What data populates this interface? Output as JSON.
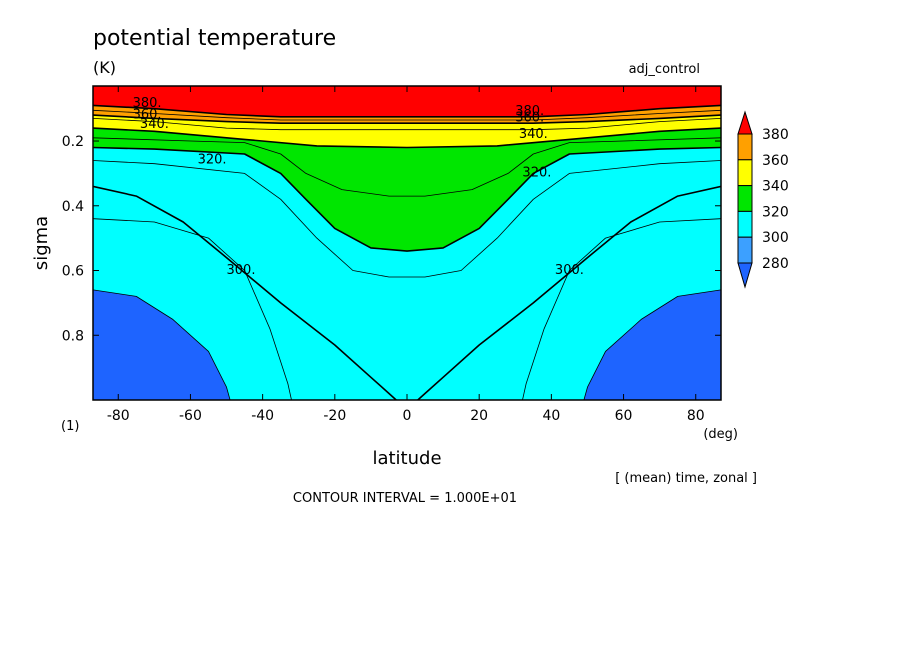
{
  "chart_data": {
    "type": "contour",
    "title": "potential temperature",
    "units": "(K)",
    "run_name": "adj_control",
    "xlabel": "latitude",
    "ylabel": "sigma",
    "x_unit": "(deg)",
    "y_unit": "(1)",
    "xlim": [
      -87,
      87
    ],
    "ylim": [
      1.0,
      0.03
    ],
    "xticks": [
      -80,
      -60,
      -40,
      -20,
      0,
      20,
      40,
      60,
      80
    ],
    "xtick_labels": [
      "-80",
      "-60",
      "-40",
      "-20",
      "0",
      "20",
      "40",
      "60",
      "80"
    ],
    "yticks": [
      0.2,
      0.4,
      0.6,
      0.8
    ],
    "ytick_labels": [
      "0.2",
      "0.4",
      "0.6",
      "0.8"
    ],
    "averaging_note": "[ (mean) time, zonal ]",
    "contour_interval_text": "CONTOUR INTERVAL = 1.000E+01",
    "colorbar": {
      "levels": [
        280,
        300,
        320,
        340,
        360,
        380
      ],
      "labels": [
        "280",
        "300",
        "320",
        "340",
        "360",
        "380"
      ],
      "colors": [
        "#1e64ff",
        "#3ca0ff",
        "#00ffff",
        "#00e600",
        "#ffff00",
        "#ffa000",
        "#ff0000"
      ]
    },
    "contours": [
      {
        "level": 290,
        "points": [
          [
            -87,
            0.66
          ],
          [
            -75,
            0.68
          ],
          [
            -65,
            0.75
          ],
          [
            -55,
            0.85
          ],
          [
            -50,
            0.96
          ],
          [
            -49,
            1.0
          ]
        ]
      },
      {
        "level": 290,
        "points": [
          [
            49,
            1.0
          ],
          [
            50,
            0.96
          ],
          [
            55,
            0.85
          ],
          [
            65,
            0.75
          ],
          [
            75,
            0.68
          ],
          [
            87,
            0.66
          ]
        ]
      },
      {
        "level": 300,
        "points": [
          [
            -87,
            0.34
          ],
          [
            -75,
            0.37
          ],
          [
            -62,
            0.45
          ],
          [
            -50,
            0.56
          ],
          [
            -35,
            0.7
          ],
          [
            -20,
            0.83
          ],
          [
            -10,
            0.93
          ],
          [
            -5,
            0.98
          ],
          [
            -3,
            1.0
          ]
        ]
      },
      {
        "level": 300,
        "points": [
          [
            3,
            1.0
          ],
          [
            5,
            0.98
          ],
          [
            10,
            0.93
          ],
          [
            20,
            0.83
          ],
          [
            35,
            0.7
          ],
          [
            50,
            0.56
          ],
          [
            62,
            0.45
          ],
          [
            75,
            0.37
          ],
          [
            87,
            0.34
          ]
        ]
      },
      {
        "level": 310,
        "points": [
          [
            -87,
            0.26
          ],
          [
            -70,
            0.27
          ],
          [
            -45,
            0.3
          ],
          [
            -35,
            0.38
          ],
          [
            -25,
            0.5
          ],
          [
            -15,
            0.6
          ],
          [
            -5,
            0.62
          ],
          [
            5,
            0.62
          ],
          [
            15,
            0.6
          ],
          [
            25,
            0.5
          ],
          [
            35,
            0.38
          ],
          [
            45,
            0.3
          ],
          [
            70,
            0.27
          ],
          [
            87,
            0.26
          ]
        ]
      },
      {
        "level": 310,
        "points": [
          [
            -87,
            0.44
          ],
          [
            -70,
            0.45
          ],
          [
            -55,
            0.5
          ],
          [
            -45,
            0.6
          ],
          [
            -38,
            0.78
          ],
          [
            -33,
            0.95
          ],
          [
            -32,
            1.0
          ]
        ]
      },
      {
        "level": 310,
        "points": [
          [
            32,
            1.0
          ],
          [
            33,
            0.95
          ],
          [
            38,
            0.78
          ],
          [
            45,
            0.6
          ],
          [
            55,
            0.5
          ],
          [
            70,
            0.45
          ],
          [
            87,
            0.44
          ]
        ]
      },
      {
        "level": 320,
        "points": [
          [
            -87,
            0.22
          ],
          [
            -70,
            0.225
          ],
          [
            -45,
            0.24
          ],
          [
            -35,
            0.3
          ],
          [
            -28,
            0.38
          ],
          [
            -20,
            0.47
          ],
          [
            -10,
            0.53
          ],
          [
            0,
            0.54
          ],
          [
            10,
            0.53
          ],
          [
            20,
            0.47
          ],
          [
            28,
            0.38
          ],
          [
            35,
            0.3
          ],
          [
            45,
            0.24
          ],
          [
            70,
            0.225
          ],
          [
            87,
            0.22
          ]
        ]
      },
      {
        "level": 330,
        "points": [
          [
            -87,
            0.19
          ],
          [
            -60,
            0.2
          ],
          [
            -45,
            0.205
          ],
          [
            -35,
            0.24
          ],
          [
            -28,
            0.3
          ],
          [
            -18,
            0.35
          ],
          [
            -5,
            0.37
          ],
          [
            5,
            0.37
          ],
          [
            18,
            0.35
          ],
          [
            28,
            0.3
          ],
          [
            35,
            0.24
          ],
          [
            45,
            0.205
          ],
          [
            60,
            0.2
          ],
          [
            87,
            0.19
          ]
        ]
      },
      {
        "level": 340,
        "points": [
          [
            -87,
            0.16
          ],
          [
            -70,
            0.17
          ],
          [
            -45,
            0.195
          ],
          [
            -25,
            0.215
          ],
          [
            0,
            0.22
          ],
          [
            25,
            0.215
          ],
          [
            45,
            0.195
          ],
          [
            70,
            0.17
          ],
          [
            87,
            0.16
          ]
        ]
      },
      {
        "level": 350,
        "points": [
          [
            -87,
            0.13
          ],
          [
            -70,
            0.14
          ],
          [
            -50,
            0.16
          ],
          [
            -35,
            0.165
          ],
          [
            0,
            0.165
          ],
          [
            35,
            0.165
          ],
          [
            50,
            0.16
          ],
          [
            70,
            0.14
          ],
          [
            87,
            0.13
          ]
        ]
      },
      {
        "level": 360,
        "points": [
          [
            -87,
            0.12
          ],
          [
            -70,
            0.13
          ],
          [
            -50,
            0.14
          ],
          [
            -35,
            0.145
          ],
          [
            0,
            0.145
          ],
          [
            35,
            0.145
          ],
          [
            50,
            0.14
          ],
          [
            70,
            0.13
          ],
          [
            87,
            0.12
          ]
        ]
      },
      {
        "level": 370,
        "points": [
          [
            -87,
            0.105
          ],
          [
            -70,
            0.115
          ],
          [
            -50,
            0.128
          ],
          [
            -35,
            0.135
          ],
          [
            0,
            0.135
          ],
          [
            35,
            0.135
          ],
          [
            50,
            0.128
          ],
          [
            70,
            0.115
          ],
          [
            87,
            0.105
          ]
        ]
      },
      {
        "level": 380,
        "points": [
          [
            -87,
            0.09
          ],
          [
            -70,
            0.1
          ],
          [
            -50,
            0.118
          ],
          [
            -35,
            0.125
          ],
          [
            0,
            0.125
          ],
          [
            35,
            0.125
          ],
          [
            50,
            0.118
          ],
          [
            70,
            0.1
          ],
          [
            87,
            0.09
          ]
        ]
      }
    ],
    "contour_labels": [
      {
        "text": "300.",
        "x": -46,
        "y": 0.61
      },
      {
        "text": "300.",
        "x": 45,
        "y": 0.61
      },
      {
        "text": "320.",
        "x": -54,
        "y": 0.27
      },
      {
        "text": "320.",
        "x": 36,
        "y": 0.31
      },
      {
        "text": "340.",
        "x": -70,
        "y": 0.16
      },
      {
        "text": "340.",
        "x": 35,
        "y": 0.19
      },
      {
        "text": "360.",
        "x": -72,
        "y": 0.13
      },
      {
        "text": "360.",
        "x": 34,
        "y": 0.14
      },
      {
        "text": "380.",
        "x": -72,
        "y": 0.095
      },
      {
        "text": "380.",
        "x": 34,
        "y": 0.12
      }
    ]
  }
}
